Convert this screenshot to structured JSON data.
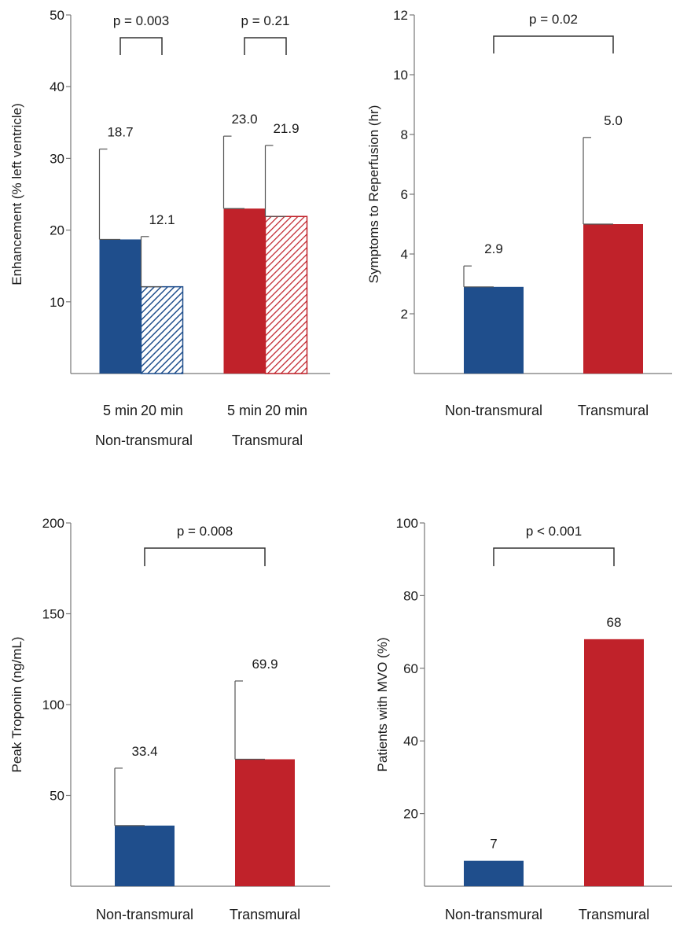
{
  "colors": {
    "non_transmural": "#1f4e8c",
    "transmural": "#c0222a",
    "axis": "#777777",
    "bracket": "#333333"
  },
  "chart_data": [
    {
      "id": "enhancement",
      "type": "bar",
      "ylabel": "Enhancement (% left ventricle)",
      "ylim": [
        0,
        50
      ],
      "yticks": [
        10,
        20,
        30,
        40,
        50
      ],
      "categories": [
        "5 min",
        "20 min",
        "5 min",
        "20 min"
      ],
      "groups": [
        "Non-transmural",
        "Transmural"
      ],
      "bars": [
        {
          "category": "5 min",
          "group": "Non-transmural",
          "value": 18.7,
          "label": "18.7",
          "error": 31.3,
          "fill": "solid",
          "color": "#1f4e8c"
        },
        {
          "category": "20 min",
          "group": "Non-transmural",
          "value": 12.1,
          "label": "12.1",
          "error": 19.1,
          "fill": "hatched",
          "color": "#1f4e8c"
        },
        {
          "category": "5 min",
          "group": "Transmural",
          "value": 23.0,
          "label": "23.0",
          "error": 33.1,
          "fill": "solid",
          "color": "#c0222a"
        },
        {
          "category": "20 min",
          "group": "Transmural",
          "value": 21.9,
          "label": "21.9",
          "error": 31.8,
          "fill": "hatched",
          "color": "#c0222a"
        }
      ],
      "comparisons": [
        {
          "between": [
            0,
            1
          ],
          "label": "p = 0.003"
        },
        {
          "between": [
            2,
            3
          ],
          "label": "p = 0.21"
        }
      ]
    },
    {
      "id": "symptoms",
      "type": "bar",
      "ylabel": "Symptoms to Reperfusion (hr)",
      "ylim": [
        0,
        12
      ],
      "yticks": [
        2,
        4,
        6,
        8,
        10,
        12
      ],
      "categories": [
        "Non-transmural",
        "Transmural"
      ],
      "bars": [
        {
          "category": "Non-transmural",
          "value": 2.9,
          "label": "2.9",
          "error": 3.6,
          "fill": "solid",
          "color": "#1f4e8c"
        },
        {
          "category": "Transmural",
          "value": 5.0,
          "label": "5.0",
          "error": 7.9,
          "fill": "solid",
          "color": "#c0222a"
        }
      ],
      "comparisons": [
        {
          "between": [
            0,
            1
          ],
          "label": "p = 0.02"
        }
      ]
    },
    {
      "id": "troponin",
      "type": "bar",
      "ylabel": "Peak Troponin (ng/mL)",
      "ylim": [
        0,
        200
      ],
      "yticks": [
        50,
        100,
        150,
        200
      ],
      "categories": [
        "Non-transmural",
        "Transmural"
      ],
      "bars": [
        {
          "category": "Non-transmural",
          "value": 33.4,
          "label": "33.4",
          "error": 65,
          "fill": "solid",
          "color": "#1f4e8c"
        },
        {
          "category": "Transmural",
          "value": 69.9,
          "label": "69.9",
          "error": 113,
          "fill": "solid",
          "color": "#c0222a"
        }
      ],
      "comparisons": [
        {
          "between": [
            0,
            1
          ],
          "label": "p = 0.008"
        }
      ]
    },
    {
      "id": "mvo",
      "type": "bar",
      "ylabel": "Patients with MVO (%)",
      "ylim": [
        0,
        100
      ],
      "yticks": [
        20,
        40,
        60,
        80,
        100
      ],
      "categories": [
        "Non-transmural",
        "Transmural"
      ],
      "bars": [
        {
          "category": "Non-transmural",
          "value": 7,
          "label": "7",
          "error": null,
          "fill": "solid",
          "color": "#1f4e8c"
        },
        {
          "category": "Transmural",
          "value": 68,
          "label": "68",
          "error": null,
          "fill": "solid",
          "color": "#c0222a"
        }
      ],
      "comparisons": [
        {
          "between": [
            0,
            1
          ],
          "label": "p < 0.001"
        }
      ]
    }
  ]
}
